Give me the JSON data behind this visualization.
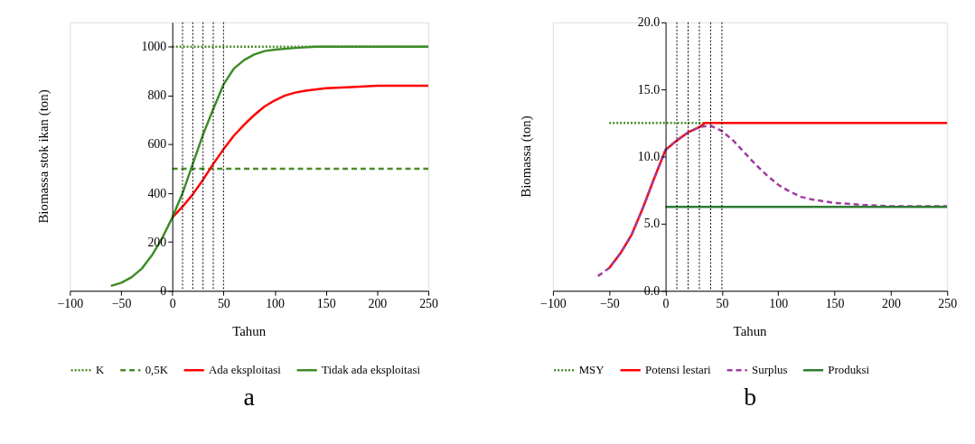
{
  "chart_data": [
    {
      "type": "line",
      "title": "a",
      "xlabel": "Tahun",
      "ylabel": "Biomassa stok ikan (ton)",
      "xlim": [
        -100,
        250
      ],
      "xticks": [
        -100,
        -50,
        0,
        50,
        100,
        150,
        200,
        250
      ],
      "ylim": [
        0,
        1100
      ],
      "yticks": [
        0,
        200,
        400,
        600,
        800,
        1000
      ],
      "grid": false,
      "legend": "bottom",
      "series": [
        {
          "name": "K",
          "color": "#4a8c2a",
          "line_style": "dotted",
          "x": [
            0,
            250
          ],
          "values": [
            1000,
            1000
          ]
        },
        {
          "name": "0,5K",
          "color": "#4a8c2a",
          "line_style": "dashed",
          "x": [
            0,
            250
          ],
          "values": [
            500,
            500
          ]
        },
        {
          "name": "Ada eksploitasi",
          "color": "#ff0000",
          "line_style": "solid",
          "x": [
            0,
            10,
            20,
            30,
            40,
            50,
            60,
            70,
            80,
            90,
            100,
            110,
            120,
            130,
            150,
            175,
            200,
            250
          ],
          "values": [
            300,
            345,
            395,
            455,
            520,
            580,
            635,
            680,
            720,
            755,
            780,
            800,
            812,
            820,
            830,
            835,
            840,
            840
          ]
        },
        {
          "name": "Tidak ada eksploitasi",
          "color": "#3d8b27",
          "line_style": "solid",
          "x": [
            -60,
            -50,
            -40,
            -30,
            -20,
            -10,
            0,
            10,
            20,
            30,
            40,
            50,
            60,
            70,
            80,
            90,
            100,
            120,
            140,
            250
          ],
          "values": [
            20,
            33,
            55,
            90,
            145,
            215,
            300,
            400,
            520,
            640,
            745,
            845,
            910,
            945,
            968,
            982,
            988,
            995,
            1000,
            1000
          ]
        }
      ],
      "ref_lines": [
        {
          "axis": "x",
          "value": 10,
          "color": "#000000",
          "line_style": "dotted"
        },
        {
          "axis": "x",
          "value": 20,
          "color": "#000000",
          "line_style": "dotted"
        },
        {
          "axis": "x",
          "value": 30,
          "color": "#000000",
          "line_style": "dotted"
        },
        {
          "axis": "x",
          "value": 40,
          "color": "#000000",
          "line_style": "dotted"
        },
        {
          "axis": "x",
          "value": 50,
          "color": "#000000",
          "line_style": "dotted"
        }
      ]
    },
    {
      "type": "line",
      "title": "b",
      "xlabel": "Tahun",
      "ylabel": "Biomassa (ton)",
      "xlim": [
        -100,
        250
      ],
      "xticks": [
        -100,
        -50,
        0,
        50,
        100,
        150,
        200,
        250
      ],
      "ylim": [
        0,
        20
      ],
      "yticks": [
        {
          "value": 0,
          "label": "0.0"
        },
        {
          "value": 5,
          "label": "5.0"
        },
        {
          "value": 10,
          "label": "10.0"
        },
        {
          "value": 15,
          "label": "15.0"
        },
        {
          "value": 20,
          "label": "20.0"
        }
      ],
      "grid": false,
      "legend": "bottom",
      "series": [
        {
          "name": "MSY",
          "color": "#4a8c2a",
          "line_style": "dotted",
          "x": [
            -50,
            35
          ],
          "values": [
            12.5,
            12.5
          ]
        },
        {
          "name": "Potensi lestari",
          "color": "#ff0000",
          "line_style": "solid",
          "x": [
            -50,
            -40,
            -30,
            -20,
            -10,
            0,
            10,
            20,
            30,
            35,
            250
          ],
          "values": [
            1.7,
            2.8,
            4.2,
            6.2,
            8.4,
            10.5,
            11.2,
            11.8,
            12.2,
            12.5,
            12.5
          ]
        },
        {
          "name": "Surplus",
          "color": "#a03ca0",
          "line_style": "dashed",
          "x": [
            -60,
            -50,
            -40,
            -30,
            -20,
            -10,
            0,
            10,
            20,
            30,
            40,
            50,
            60,
            70,
            80,
            90,
            100,
            110,
            120,
            130,
            150,
            175,
            200,
            250
          ],
          "values": [
            1.1,
            1.7,
            2.8,
            4.2,
            6.2,
            8.4,
            10.5,
            11.2,
            11.8,
            12.2,
            12.3,
            11.9,
            11.2,
            10.3,
            9.4,
            8.6,
            7.9,
            7.4,
            7.0,
            6.8,
            6.55,
            6.4,
            6.3,
            6.3
          ]
        },
        {
          "name": "Produksi",
          "color": "#2e7d32",
          "line_style": "solid",
          "x": [
            0,
            250
          ],
          "values": [
            6.25,
            6.25
          ]
        }
      ],
      "ref_lines": [
        {
          "axis": "x",
          "value": 10,
          "color": "#000000",
          "line_style": "dotted"
        },
        {
          "axis": "x",
          "value": 20,
          "color": "#000000",
          "line_style": "dotted"
        },
        {
          "axis": "x",
          "value": 30,
          "color": "#000000",
          "line_style": "dotted"
        },
        {
          "axis": "x",
          "value": 40,
          "color": "#000000",
          "line_style": "dotted"
        },
        {
          "axis": "x",
          "value": 50,
          "color": "#000000",
          "line_style": "dotted"
        }
      ]
    }
  ]
}
